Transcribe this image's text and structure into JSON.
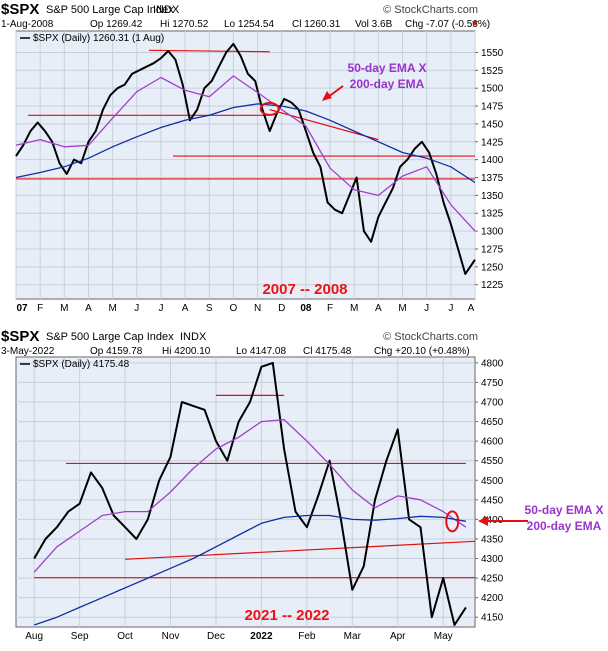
{
  "colors": {
    "price": "#000000",
    "ema50": "#a040c8",
    "ema200": "#1030a0",
    "trend": "#e01010",
    "annotation": "#9933cc",
    "period": "#ee1111",
    "panel_bg": "#e8eef8"
  },
  "chart_data": [
    {
      "type": "line",
      "title": "$SPX",
      "subtitle": "S&P 500 Large Cap Index",
      "exchange": "INDX",
      "brand": "© StockCharts.com",
      "header": {
        "date": "1-Aug-2008",
        "op": "Op 1269.42",
        "hi": "Hi 1270.52",
        "lo": "Lo 1254.54",
        "cl": "Cl 1260.31",
        "vol": "Vol 3.6B",
        "chg": "Chg -7.07 (-0.56%)"
      },
      "legend": "$SPX (Daily) 1260.31 (1 Aug)",
      "ylim": [
        1205,
        1580
      ],
      "yticks": [
        1225,
        1250,
        1275,
        1300,
        1325,
        1350,
        1375,
        1400,
        1425,
        1450,
        1475,
        1500,
        1525,
        1550
      ],
      "x_labels": [
        "07",
        "F",
        "M",
        "A",
        "M",
        "J",
        "J",
        "A",
        "S",
        "O",
        "N",
        "D",
        "08",
        "F",
        "M",
        "A",
        "M",
        "J",
        "J",
        "A"
      ],
      "annotation": {
        "line1": "50-day EMA X",
        "line2": "200-day EMA"
      },
      "period_label": "2007 -- 2008",
      "series": [
        {
          "role": "price",
          "x": [
            0,
            0.3,
            0.6,
            0.9,
            1.2,
            1.5,
            1.8,
            2.1,
            2.4,
            2.7,
            3.0,
            3.3,
            3.6,
            3.9,
            4.2,
            4.5,
            4.8,
            5.1,
            5.4,
            5.7,
            6.0,
            6.3,
            6.6,
            6.9,
            7.2,
            7.5,
            7.8,
            8.1,
            8.4,
            8.7,
            9.0,
            9.3,
            9.6,
            9.9,
            10.2,
            10.5,
            10.8,
            11.1,
            11.4,
            11.7,
            12.0,
            12.3,
            12.6,
            12.9,
            13.2,
            13.5,
            13.8,
            14.1,
            14.4,
            14.7,
            15.0,
            15.3,
            15.6,
            15.9,
            16.2,
            16.5,
            16.8,
            17.1,
            17.4,
            17.7,
            18.0,
            18.3,
            18.6,
            19.0
          ],
          "values": [
            1405,
            1420,
            1440,
            1452,
            1440,
            1425,
            1395,
            1380,
            1400,
            1395,
            1425,
            1440,
            1470,
            1490,
            1500,
            1505,
            1520,
            1525,
            1530,
            1535,
            1542,
            1552,
            1540,
            1505,
            1455,
            1470,
            1500,
            1510,
            1530,
            1550,
            1562,
            1545,
            1520,
            1510,
            1470,
            1440,
            1465,
            1485,
            1480,
            1470,
            1440,
            1410,
            1390,
            1340,
            1330,
            1325,
            1350,
            1375,
            1300,
            1285,
            1320,
            1340,
            1360,
            1390,
            1400,
            1415,
            1425,
            1410,
            1380,
            1340,
            1310,
            1275,
            1240,
            1260
          ]
        },
        {
          "role": "ema50",
          "x": [
            0,
            1,
            2,
            3,
            4,
            5,
            6,
            7,
            8,
            9,
            10,
            11,
            12,
            13,
            14,
            15,
            16,
            17,
            18,
            19
          ],
          "values": [
            1420,
            1428,
            1418,
            1420,
            1458,
            1495,
            1515,
            1497,
            1488,
            1517,
            1494,
            1470,
            1447,
            1388,
            1358,
            1350,
            1377,
            1390,
            1337,
            1300
          ]
        },
        {
          "role": "ema200",
          "x": [
            0,
            1,
            2,
            3,
            4,
            5,
            6,
            7,
            8,
            9,
            10,
            11,
            12,
            13,
            14,
            15,
            16,
            17,
            18,
            19
          ],
          "values": [
            1375,
            1382,
            1390,
            1402,
            1418,
            1432,
            1445,
            1455,
            1462,
            1473,
            1478,
            1475,
            1468,
            1455,
            1440,
            1425,
            1410,
            1402,
            1390,
            1368
          ]
        }
      ],
      "trendlines": [
        {
          "x": [
            5.5,
            10.5
          ],
          "values": [
            1553,
            1551
          ]
        },
        {
          "x": [
            0.5,
            10.5
          ],
          "values": [
            1462,
            1462
          ]
        },
        {
          "x": [
            10.5,
            15.0
          ],
          "values": [
            1470,
            1428
          ]
        },
        {
          "x": [
            6.5,
            19.0
          ],
          "values": [
            1405,
            1405
          ]
        },
        {
          "x": [
            0,
            19.0
          ],
          "values": [
            1373,
            1373
          ]
        }
      ],
      "crossover": {
        "x": 10.5,
        "value": 1471
      }
    },
    {
      "type": "line",
      "title": "$SPX",
      "subtitle": "S&P 500 Large Cap Index",
      "exchange": "INDX",
      "brand": "© StockCharts.com",
      "header": {
        "date": "3-May-2022",
        "op": "Op 4159.78",
        "hi": "Hi 4200.10",
        "lo": "Lo 4147.08",
        "cl": "Cl 4175.48",
        "vol": "",
        "chg": "Chg +20.10 (+0.48%)"
      },
      "legend": "$SPX (Daily) 4175.48",
      "ylim": [
        4125,
        4815
      ],
      "yticks": [
        4150,
        4200,
        4250,
        4300,
        4350,
        4400,
        4450,
        4500,
        4550,
        4600,
        4650,
        4700,
        4750,
        4800
      ],
      "x_labels": [
        "Aug",
        "Sep",
        "Oct",
        "Nov",
        "Dec",
        "2022",
        "Feb",
        "Mar",
        "Apr",
        "May"
      ],
      "annotation": {
        "line1": "50-day EMA X",
        "line2": "200-day EMA"
      },
      "period_label": "2021 -- 2022",
      "series": [
        {
          "role": "price",
          "x": [
            0,
            0.25,
            0.5,
            0.75,
            1.0,
            1.25,
            1.5,
            1.75,
            2.0,
            2.25,
            2.5,
            2.75,
            3.0,
            3.25,
            3.5,
            3.75,
            4.0,
            4.25,
            4.5,
            4.75,
            5.0,
            5.25,
            5.5,
            5.75,
            6.0,
            6.25,
            6.5,
            6.75,
            7.0,
            7.25,
            7.5,
            7.75,
            8.0,
            8.25,
            8.5,
            8.75,
            9.0,
            9.25,
            9.5
          ],
          "values": [
            4300,
            4350,
            4380,
            4420,
            4440,
            4520,
            4480,
            4410,
            4380,
            4350,
            4400,
            4500,
            4560,
            4700,
            4690,
            4680,
            4600,
            4550,
            4650,
            4700,
            4790,
            4800,
            4580,
            4420,
            4380,
            4460,
            4550,
            4400,
            4220,
            4280,
            4450,
            4550,
            4630,
            4400,
            4380,
            4150,
            4250,
            4130,
            4175
          ]
        },
        {
          "role": "ema50",
          "x": [
            0,
            0.5,
            1,
            1.5,
            2,
            2.5,
            3,
            3.5,
            4,
            4.5,
            5,
            5.5,
            6,
            6.5,
            7,
            7.5,
            8,
            8.5,
            9,
            9.5
          ],
          "values": [
            4265,
            4330,
            4370,
            4410,
            4420,
            4420,
            4470,
            4530,
            4580,
            4610,
            4650,
            4655,
            4600,
            4540,
            4475,
            4430,
            4460,
            4450,
            4420,
            4380
          ]
        },
        {
          "role": "ema200",
          "x": [
            0,
            0.5,
            1,
            1.5,
            2,
            2.5,
            3,
            3.5,
            4,
            4.5,
            5,
            5.5,
            6,
            6.5,
            7,
            7.5,
            8,
            8.5,
            9,
            9.5
          ],
          "values": [
            4130,
            4150,
            4175,
            4200,
            4225,
            4250,
            4275,
            4300,
            4330,
            4360,
            4390,
            4405,
            4410,
            4410,
            4400,
            4398,
            4402,
            4408,
            4405,
            4395
          ]
        }
      ],
      "trendlines": [
        {
          "x": [
            4.0,
            5.5
          ],
          "values": [
            4717,
            4717
          ]
        },
        {
          "x": [
            0.7,
            9.5
          ],
          "values": [
            4543,
            4543
          ]
        },
        {
          "x": [
            2.0,
            9.7
          ],
          "values": [
            4298,
            4344
          ]
        },
        {
          "x": [
            0,
            9.7
          ],
          "values": [
            4251,
            4251
          ]
        }
      ],
      "crossover": {
        "x": 9.2,
        "value": 4395
      }
    }
  ]
}
